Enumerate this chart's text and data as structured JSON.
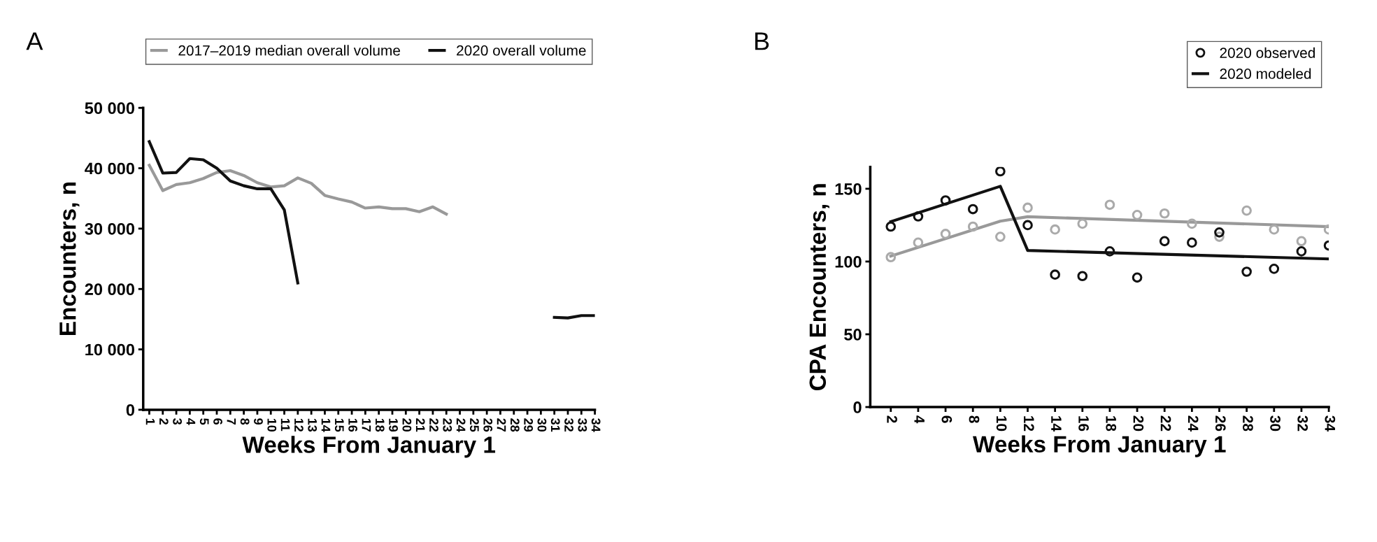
{
  "chart_data": [
    {
      "type": "line",
      "title": "A",
      "xlabel": "Weeks From January 1",
      "ylabel": "Encounters, n",
      "categories": [
        "1",
        "2",
        "3",
        "4",
        "5",
        "6",
        "7",
        "8",
        "9",
        "10",
        "11",
        "12",
        "13",
        "14",
        "15",
        "16",
        "17",
        "18",
        "19",
        "20",
        "21",
        "22",
        "23",
        "24",
        "25",
        "26",
        "27",
        "28",
        "29",
        "30",
        "31",
        "32",
        "33",
        "34"
      ],
      "series": [
        {
          "name": "2017–2019 median overall volume",
          "color": "#999999",
          "values": [
            40500,
            36300,
            37300,
            37600,
            38300,
            39300,
            39600,
            38800,
            37600,
            36900,
            37100,
            38400,
            37500,
            35500,
            34900,
            34400,
            33400,
            33600,
            33300,
            33300,
            32800,
            33600,
            32400,
            null,
            null,
            null,
            null,
            null,
            null,
            null,
            null,
            null,
            null,
            null
          ]
        },
        {
          "name": "2020 overall volume",
          "color": "#111111",
          "values": [
            44400,
            39200,
            39300,
            41600,
            41400,
            40000,
            37900,
            37100,
            36600,
            36600,
            33100,
            21000,
            null,
            null,
            null,
            null,
            null,
            null,
            null,
            null,
            null,
            null,
            null,
            null,
            null,
            null,
            null,
            null,
            null,
            null,
            15300,
            15200,
            15600,
            15600
          ]
        }
      ],
      "ylim": [
        0,
        50000
      ],
      "yticks": [
        {
          "value": 0,
          "label": "0"
        },
        {
          "value": 10000,
          "label": "10 000"
        },
        {
          "value": 20000,
          "label": "20 000"
        },
        {
          "value": 30000,
          "label": "30 000"
        },
        {
          "value": 40000,
          "label": "40 000"
        },
        {
          "value": 50000,
          "label": "50 000"
        }
      ],
      "legend": "top",
      "grid": false
    },
    {
      "type": "scatter",
      "title": "B",
      "xlabel": "Weeks From January 1",
      "ylabel": "CPA Encounters, n",
      "x": [
        2,
        4,
        6,
        8,
        10,
        12,
        14,
        16,
        18,
        20,
        22,
        24,
        26,
        28,
        30,
        32,
        34
      ],
      "series": [
        {
          "type": "scatter",
          "color": "#aaaaaa",
          "marker": "circle",
          "values": [
            103,
            113,
            119,
            124,
            117,
            137,
            122,
            126,
            139,
            132,
            133,
            126,
            117,
            135,
            122,
            114,
            122
          ]
        },
        {
          "type": "line",
          "color": "#999999",
          "x": [
            2,
            10,
            12,
            34
          ],
          "values": [
            103.7,
            127.7,
            130.8,
            124
          ]
        },
        {
          "type": "scatter",
          "name": "2020 observed",
          "color": "#111111",
          "marker": "circle",
          "values": [
            124,
            131,
            142,
            136,
            162,
            125,
            91,
            90,
            107,
            89,
            114,
            113,
            120,
            93,
            95,
            107,
            111
          ]
        },
        {
          "type": "line",
          "name": "2020 modeled",
          "color": "#111111",
          "x": [
            2,
            10,
            12,
            34
          ],
          "values": [
            127.4,
            151.7,
            107.6,
            101.8
          ]
        }
      ],
      "xlim": [
        0.5,
        34
      ],
      "xticks": [
        2,
        4,
        6,
        8,
        10,
        12,
        14,
        16,
        18,
        20,
        22,
        24,
        26,
        28,
        30,
        32,
        34
      ],
      "ylim": [
        0,
        165
      ],
      "yticks": [
        0,
        50,
        100,
        150
      ],
      "legend": "top right",
      "grid": false
    }
  ]
}
